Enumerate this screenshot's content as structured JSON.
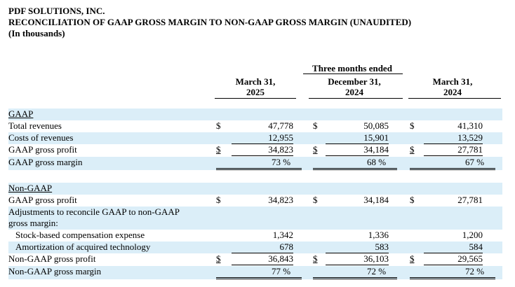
{
  "header": {
    "company": "PDF SOLUTIONS, INC.",
    "title": "RECONCILIATION OF GAAP GROSS MARGIN TO NON-GAAP GROSS MARGIN (UNAUDITED)",
    "units": "(In thousands)"
  },
  "period_group": "Three months ended",
  "columns": [
    {
      "line1": "March 31,",
      "line2": "2025"
    },
    {
      "line1": "December 31,",
      "line2": "2024"
    },
    {
      "line1": "March 31,",
      "line2": "2024"
    }
  ],
  "currency_symbol": "$",
  "percent_symbol": "%",
  "gaap": {
    "section": "GAAP",
    "total_revenues": {
      "label": "Total revenues",
      "values": [
        "47,778",
        "50,085",
        "41,310"
      ]
    },
    "cost_of_revenues": {
      "label": "Costs of revenues",
      "values": [
        "12,955",
        "15,901",
        "13,529"
      ]
    },
    "gross_profit": {
      "label": "GAAP gross profit",
      "values": [
        "34,823",
        "34,184",
        "27,781"
      ]
    },
    "gross_margin": {
      "label": "GAAP gross margin",
      "values": [
        "73",
        "68",
        "67"
      ]
    }
  },
  "non_gaap": {
    "section": "Non-GAAP",
    "gaap_gross_profit": {
      "label": "GAAP gross profit",
      "values": [
        "34,823",
        "34,184",
        "27,781"
      ]
    },
    "adjustments": {
      "line1": "Adjustments to reconcile GAAP to non-GAAP",
      "line2": "gross margin:"
    },
    "stock_comp": {
      "label": "Stock-based compensation expense",
      "values": [
        "1,342",
        "1,336",
        "1,200"
      ]
    },
    "amortization": {
      "label": "Amortization of acquired technology",
      "values": [
        "678",
        "583",
        "584"
      ]
    },
    "gross_profit": {
      "label": "Non-GAAP gross profit",
      "values": [
        "36,843",
        "36,103",
        "29,565"
      ]
    },
    "gross_margin": {
      "label": "Non-GAAP gross margin",
      "values": [
        "77",
        "72",
        "72"
      ]
    }
  }
}
